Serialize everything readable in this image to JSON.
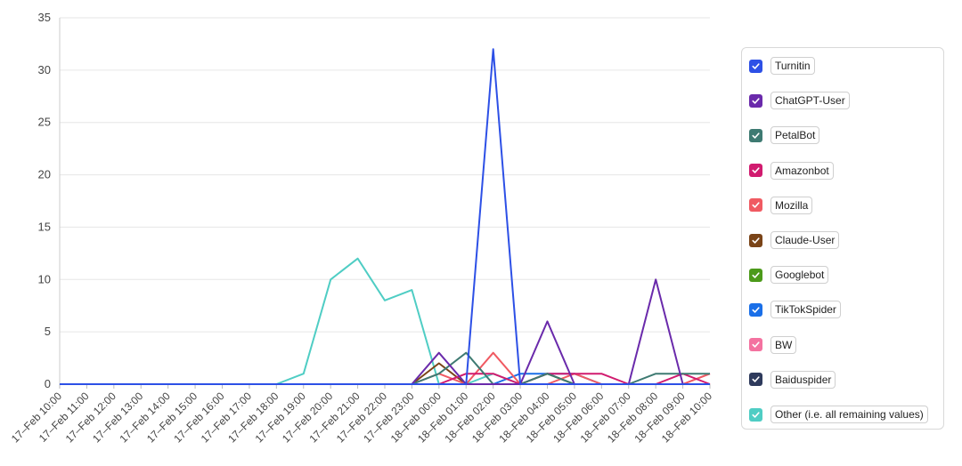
{
  "chart_data": {
    "type": "line",
    "title": "",
    "xlabel": "",
    "ylabel": "",
    "ylim": [
      0,
      35
    ],
    "yticks": [
      0,
      5,
      10,
      15,
      20,
      25,
      30,
      35
    ],
    "grid": "horizontal",
    "legend_position": "right",
    "categories": [
      "17–Feb 10:00",
      "17–Feb 11:00",
      "17–Feb 12:00",
      "17–Feb 13:00",
      "17–Feb 14:00",
      "17–Feb 15:00",
      "17–Feb 16:00",
      "17–Feb 17:00",
      "17–Feb 18:00",
      "17–Feb 19:00",
      "17–Feb 20:00",
      "17–Feb 21:00",
      "17–Feb 22:00",
      "17–Feb 23:00",
      "18–Feb 00:00",
      "18–Feb 01:00",
      "18–Feb 02:00",
      "18–Feb 03:00",
      "18–Feb 04:00",
      "18–Feb 05:00",
      "18–Feb 06:00",
      "18–Feb 07:00",
      "18–Feb 08:00",
      "18–Feb 09:00",
      "18–Feb 10:00"
    ],
    "series": [
      {
        "name": "Turnitin",
        "color": "#2d50e6",
        "checked": true,
        "values": [
          0,
          0,
          0,
          0,
          0,
          0,
          0,
          0,
          0,
          0,
          0,
          0,
          0,
          0,
          0,
          0,
          32,
          0,
          0,
          0,
          0,
          0,
          0,
          0,
          0
        ]
      },
      {
        "name": "ChatGPT-User",
        "color": "#6a2aab",
        "checked": true,
        "values": [
          0,
          0,
          0,
          0,
          0,
          0,
          0,
          0,
          0,
          0,
          0,
          0,
          0,
          0,
          3,
          0,
          0,
          0,
          6,
          0,
          0,
          0,
          10,
          0,
          0
        ]
      },
      {
        "name": "PetalBot",
        "color": "#3e7a72",
        "checked": true,
        "values": [
          0,
          0,
          0,
          0,
          0,
          0,
          0,
          0,
          0,
          0,
          0,
          0,
          0,
          0,
          1,
          3,
          0,
          0,
          1,
          0,
          0,
          0,
          1,
          1,
          1
        ]
      },
      {
        "name": "Amazonbot",
        "color": "#d11b6f",
        "checked": true,
        "values": [
          0,
          0,
          0,
          0,
          0,
          0,
          0,
          0,
          0,
          0,
          0,
          0,
          0,
          0,
          0,
          1,
          1,
          0,
          1,
          1,
          1,
          0,
          0,
          1,
          0
        ]
      },
      {
        "name": "Mozilla",
        "color": "#f05a62",
        "checked": true,
        "values": [
          0,
          0,
          0,
          0,
          0,
          0,
          0,
          0,
          0,
          0,
          0,
          0,
          0,
          0,
          1,
          0,
          3,
          0,
          0,
          1,
          0,
          0,
          0,
          0,
          1
        ]
      },
      {
        "name": "Claude-User",
        "color": "#7a4418",
        "checked": true,
        "values": [
          0,
          0,
          0,
          0,
          0,
          0,
          0,
          0,
          0,
          0,
          0,
          0,
          0,
          0,
          2,
          0,
          0,
          0,
          1,
          0,
          0,
          0,
          0,
          0,
          0
        ]
      },
      {
        "name": "Googlebot",
        "color": "#4c9a1a",
        "checked": true,
        "values": [
          0,
          0,
          0,
          0,
          0,
          0,
          0,
          0,
          0,
          0,
          0,
          0,
          0,
          0,
          0,
          0,
          0,
          0,
          1,
          0,
          0,
          0,
          0,
          0,
          0
        ]
      },
      {
        "name": "TikTokSpider",
        "color": "#1a6fe8",
        "checked": true,
        "values": [
          0,
          0,
          0,
          0,
          0,
          0,
          0,
          0,
          0,
          0,
          0,
          0,
          0,
          0,
          0,
          0,
          0,
          1,
          1,
          1,
          0,
          0,
          0,
          0,
          0
        ]
      },
      {
        "name": "BW",
        "color": "#f472a0",
        "checked": true,
        "values": [
          0,
          0,
          0,
          0,
          0,
          0,
          0,
          0,
          0,
          0,
          0,
          0,
          0,
          0,
          0,
          0,
          0,
          0,
          0,
          0,
          0,
          0,
          0,
          0,
          1
        ]
      },
      {
        "name": "Baiduspider",
        "color": "#2e3a5c",
        "checked": true,
        "values": [
          0,
          0,
          0,
          0,
          0,
          0,
          0,
          0,
          0,
          0,
          0,
          0,
          0,
          0,
          0,
          0,
          0,
          0,
          0,
          0,
          0,
          0,
          0,
          0,
          0
        ]
      },
      {
        "name": "Other (i.e. all remaining values)",
        "color": "#4fcdc4",
        "checked": true,
        "values": [
          0,
          0,
          0,
          0,
          0,
          0,
          0,
          0,
          0,
          1,
          10,
          12,
          8,
          9,
          0,
          0,
          1,
          0,
          0,
          0,
          0,
          0,
          0,
          0,
          0
        ]
      }
    ]
  }
}
